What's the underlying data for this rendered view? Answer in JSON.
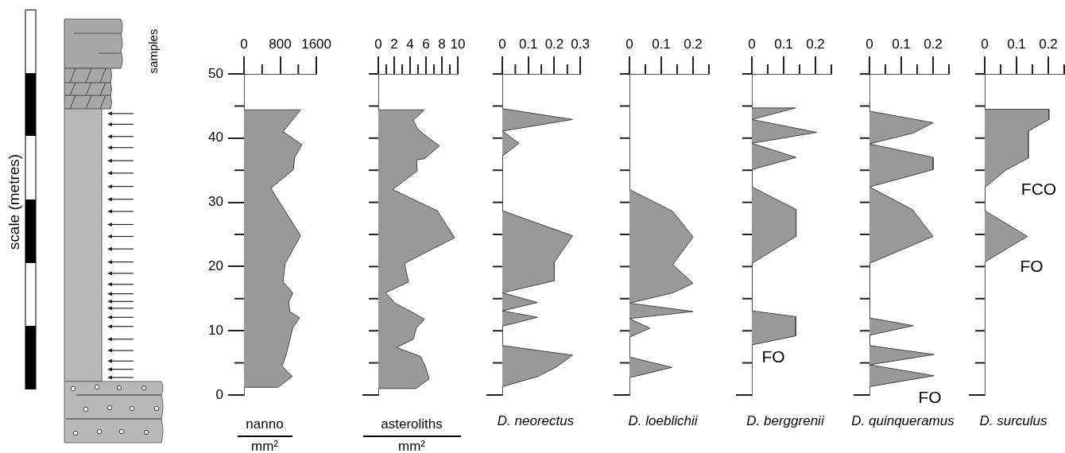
{
  "chart_data": [
    {
      "type": "other",
      "annotations": [
        "scale (metres)",
        "samples"
      ]
    },
    {
      "type": "area",
      "orientation": "horizontal",
      "xlabel": "nanno\nmm²",
      "color": "#999999",
      "x": [
        44.4,
        44.4,
        41.0,
        39.0,
        37.0,
        35.1,
        32.2,
        24.8,
        20.5,
        17.6,
        15.9,
        14.5,
        13.0,
        12.0,
        10.5,
        6.2,
        4.5,
        2.9,
        1.2,
        1.2
      ],
      "values": [
        0,
        1250,
        860,
        1280,
        1120,
        1090,
        590,
        1250,
        910,
        860,
        1080,
        990,
        1010,
        1230,
        1080,
        930,
        840,
        1070,
        750,
        0
      ],
      "xlim": [
        0,
        1600
      ],
      "xticks": [
        0,
        {
          "value": 400,
          "label": null
        },
        800,
        {
          "value": 1200,
          "label": null
        },
        1600
      ],
      "ylim": [
        0,
        50
      ],
      "yticks": [
        0,
        {
          "value": 5,
          "label": null
        },
        10,
        {
          "value": 15,
          "label": null
        },
        20,
        {
          "value": 25,
          "label": null
        },
        30,
        {
          "value": 35,
          "label": null
        },
        40,
        {
          "value": 45,
          "label": null
        },
        50
      ]
    },
    {
      "type": "area",
      "orientation": "horizontal",
      "xlabel": "asteroliths\nmm²",
      "color": "#999999",
      "x": [
        44.4,
        44.4,
        42.8,
        41.5,
        40.5,
        38.8,
        36.8,
        36.6,
        34.9,
        32.0,
        28.7,
        24.5,
        20.5,
        17.6,
        15.9,
        14.3,
        13.2,
        11.8,
        10.5,
        8.7,
        7.4,
        6.0,
        4.5,
        2.5,
        1.0,
        1.0
      ],
      "values": [
        0,
        5.8,
        4.4,
        4.9,
        5.8,
        7.7,
        5.8,
        4.8,
        4.9,
        1.8,
        7.4,
        9.6,
        3.3,
        3.8,
        0.9,
        2.1,
        3.8,
        5.8,
        4.8,
        4.4,
        2.3,
        5.3,
        5.9,
        6.4,
        4.7,
        0
      ],
      "xlim": [
        0,
        10
      ],
      "xticks": [
        0,
        {
          "value": 1,
          "label": null
        },
        2,
        {
          "value": 3,
          "label": null
        },
        4,
        {
          "value": 5,
          "label": null
        },
        6,
        {
          "value": 7,
          "label": null
        },
        8,
        {
          "value": 9,
          "label": null
        },
        10
      ],
      "ylim": [
        0,
        50
      ],
      "yticks": [
        0,
        {
          "value": 5,
          "label": null
        },
        {
          "value": 10,
          "label": null
        },
        {
          "value": 15,
          "label": null
        },
        {
          "value": 20,
          "label": null
        },
        {
          "value": 25,
          "label": null
        },
        {
          "value": 30,
          "label": null
        },
        {
          "value": 35,
          "label": null
        },
        {
          "value": 40,
          "label": null
        },
        {
          "value": 45,
          "label": null
        },
        {
          "value": 50,
          "label": null
        }
      ],
      "tick_labels": "x"
    },
    {
      "type": "area",
      "orientation": "horizontal",
      "xlabel": "D. neorectus",
      "color": "#999999",
      "x": [
        44.6,
        42.9,
        41.1,
        39.2,
        37.2,
        28.7,
        24.8,
        20.7,
        17.8,
        15.9,
        14.4,
        13.1,
        12.1,
        10.7,
        7.7,
        6.2,
        4.3,
        2.9,
        1.3
      ],
      "values": [
        0,
        0.27,
        0,
        0.064,
        0,
        0,
        0.27,
        0.2,
        0.2,
        0,
        0.135,
        0,
        0.135,
        0,
        0,
        0.27,
        0.205,
        0.138,
        0
      ],
      "xlim": [
        0,
        0.3
      ],
      "xticks": [
        0,
        {
          "value": 0.05,
          "label": null
        },
        0.1,
        {
          "value": 0.15,
          "label": null
        },
        0.2,
        {
          "value": 0.25,
          "label": null
        },
        0.3
      ],
      "ylim": [
        0,
        50
      ],
      "yticks": [
        0,
        {
          "value": 5,
          "label": null
        },
        {
          "value": 10,
          "label": null
        },
        {
          "value": 15,
          "label": null
        },
        {
          "value": 20,
          "label": null
        },
        {
          "value": 25,
          "label": null
        },
        {
          "value": 30,
          "label": null
        },
        {
          "value": 35,
          "label": null
        },
        {
          "value": 40,
          "label": null
        },
        {
          "value": 45,
          "label": null
        },
        {
          "value": 50,
          "label": null
        }
      ],
      "tick_labels": "x"
    },
    {
      "type": "area",
      "orientation": "horizontal",
      "xlabel": "D. loeblichii",
      "color": "#999999",
      "x": [
        32.0,
        28.6,
        24.6,
        20.3,
        17.4,
        15.9,
        14.3,
        13.0,
        11.9,
        10.4,
        9.0,
        5.9,
        4.3,
        2.7
      ],
      "values": [
        0,
        0.136,
        0.2,
        0.136,
        0.2,
        0.136,
        0,
        0.2,
        0,
        0.064,
        0,
        0,
        0.134,
        0
      ],
      "xlim": [
        0,
        0.25
      ],
      "xticks": [
        0,
        {
          "value": 0.05,
          "label": null
        },
        0.1,
        {
          "value": 0.15,
          "label": null
        },
        0.2,
        {
          "value": 0.25,
          "label": null
        }
      ],
      "ylim": [
        0,
        50
      ],
      "yticks": [
        0,
        {
          "value": 5,
          "label": null
        },
        {
          "value": 10,
          "label": null
        },
        {
          "value": 15,
          "label": null
        },
        {
          "value": 20,
          "label": null
        },
        {
          "value": 25,
          "label": null
        },
        {
          "value": 30,
          "label": null
        },
        {
          "value": 35,
          "label": null
        },
        {
          "value": 40,
          "label": null
        },
        {
          "value": 45,
          "label": null
        },
        {
          "value": 50,
          "label": null
        }
      ],
      "tick_labels": "x"
    },
    {
      "type": "area",
      "orientation": "horizontal",
      "xlabel": "D. berggrenii",
      "color": "#999999",
      "x": [
        44.7,
        44.7,
        42.9,
        40.9,
        39.2,
        37.0,
        35.1,
        32.4,
        28.9,
        24.7,
        20.5,
        13.1,
        12.2,
        9.2,
        7.8
      ],
      "values": [
        0,
        0.137,
        0,
        0.204,
        0,
        0.139,
        0,
        0,
        0.139,
        0.139,
        0,
        0,
        0.138,
        0.138,
        0
      ],
      "xlim": [
        0,
        0.25
      ],
      "xticks": [
        0,
        {
          "value": 0.05,
          "label": null
        },
        0.1,
        {
          "value": 0.15,
          "label": null
        },
        0.2,
        {
          "value": 0.25,
          "label": null
        }
      ],
      "ylim": [
        0,
        50
      ],
      "yticks": [
        0,
        {
          "value": 5,
          "label": null
        },
        {
          "value": 10,
          "label": null
        },
        {
          "value": 15,
          "label": null
        },
        {
          "value": 20,
          "label": null
        },
        {
          "value": 25,
          "label": null
        },
        {
          "value": 30,
          "label": null
        },
        {
          "value": 35,
          "label": null
        },
        {
          "value": 40,
          "label": null
        },
        {
          "value": 45,
          "label": null
        },
        {
          "value": 50,
          "label": null
        }
      ],
      "tick_labels": "x",
      "annotations": [
        "FO"
      ]
    },
    {
      "type": "area",
      "orientation": "horizontal",
      "xlabel": "D. quinqueramus",
      "color": "#999999",
      "x": [
        44.2,
        42.4,
        40.8,
        39.1,
        37.0,
        35.1,
        32.4,
        28.9,
        24.7,
        20.5,
        12.0,
        10.8,
        9.3,
        7.7,
        6.3,
        4.7,
        3.0,
        1.3
      ],
      "values": [
        0,
        0.2,
        0.138,
        0,
        0.2,
        0.2,
        0,
        0.134,
        0.2,
        0,
        0,
        0.138,
        0,
        0,
        0.203,
        0,
        0.203,
        0
      ],
      "xlim": [
        0,
        0.25
      ],
      "xticks": [
        0,
        {
          "value": 0.05,
          "label": null
        },
        0.1,
        {
          "value": 0.15,
          "label": null
        },
        0.2,
        {
          "value": 0.25,
          "label": null
        }
      ],
      "ylim": [
        0,
        50
      ],
      "yticks": [
        0,
        {
          "value": 5,
          "label": null
        },
        {
          "value": 10,
          "label": null
        },
        {
          "value": 15,
          "label": null
        },
        {
          "value": 20,
          "label": null
        },
        {
          "value": 25,
          "label": null
        },
        {
          "value": 30,
          "label": null
        },
        {
          "value": 35,
          "label": null
        },
        {
          "value": 40,
          "label": null
        },
        {
          "value": 45,
          "label": null
        },
        {
          "value": 50,
          "label": null
        }
      ],
      "tick_labels": "x",
      "annotations": [
        "FO"
      ]
    },
    {
      "type": "area",
      "orientation": "horizontal",
      "xlabel": "D. surculus",
      "color": "#999999",
      "x": [
        44.5,
        44.5,
        42.9,
        41.1,
        36.9,
        35.0,
        32.3,
        28.7,
        24.7,
        20.7
      ],
      "values": [
        0,
        0.202,
        0.202,
        0.137,
        0.137,
        0.066,
        0,
        0,
        0.134,
        0
      ],
      "xlim": [
        0,
        0.25
      ],
      "xticks": [
        0,
        {
          "value": 0.05,
          "label": null
        },
        0.1,
        {
          "value": 0.15,
          "label": null
        },
        0.2,
        {
          "value": 0.25,
          "label": null
        }
      ],
      "ylim": [
        0,
        50
      ],
      "yticks": [
        0,
        {
          "value": 5,
          "label": null
        },
        {
          "value": 10,
          "label": null
        },
        {
          "value": 15,
          "label": null
        },
        {
          "value": 20,
          "label": null
        },
        {
          "value": 25,
          "label": null
        },
        {
          "value": 30,
          "label": null
        },
        {
          "value": 35,
          "label": null
        },
        {
          "value": 40,
          "label": null
        },
        {
          "value": 45,
          "label": null
        },
        {
          "value": 50,
          "label": null
        }
      ],
      "tick_labels": "x",
      "annotations": [
        "FCO",
        "FO"
      ]
    }
  ]
}
